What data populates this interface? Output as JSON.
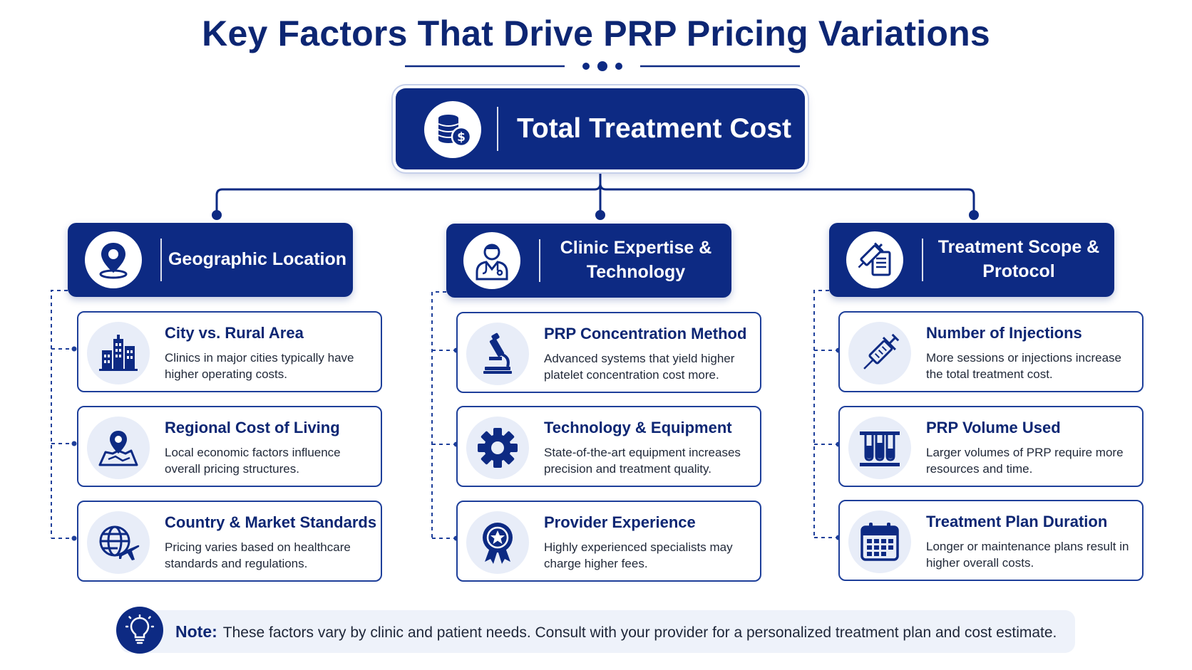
{
  "title": "Key Factors That Drive PRP Pricing Variations",
  "colors": {
    "navy": "#0d2a83",
    "accent_light": "#e8edf8",
    "text": "#222a3a"
  },
  "root": {
    "label": "Total Treatment Cost",
    "icon": "coins-dollar-icon"
  },
  "categories": [
    {
      "label": "Geographic Location",
      "icon": "location-pin-icon",
      "items": [
        {
          "title": "City vs. Rural Area",
          "desc": "Clinics in major cities typically have higher operating costs.",
          "icon": "city-buildings-icon"
        },
        {
          "title": "Regional Cost of Living",
          "desc": "Local economic factors influence overall pricing structures.",
          "icon": "map-pin-icon"
        },
        {
          "title": "Country & Market Standards",
          "desc": "Pricing varies based on healthcare standards and regulations.",
          "icon": "globe-plane-icon"
        }
      ]
    },
    {
      "label": "Clinic Expertise & Technology",
      "icon": "doctor-icon",
      "items": [
        {
          "title": "PRP Concentration Method",
          "desc": "Advanced systems that yield higher platelet concentration cost more.",
          "icon": "microscope-icon"
        },
        {
          "title": "Technology & Equipment",
          "desc": "State-of-the-art equipment increases precision and treatment quality.",
          "icon": "gear-icon"
        },
        {
          "title": "Provider Experience",
          "desc": "Highly experienced specialists may charge higher fees.",
          "icon": "award-ribbon-icon"
        }
      ]
    },
    {
      "label": "Treatment Scope & Protocol",
      "icon": "syringe-document-icon",
      "items": [
        {
          "title": "Number of Injections",
          "desc": "More sessions or injections increase the total treatment cost.",
          "icon": "syringe-icon"
        },
        {
          "title": "PRP Volume Used",
          "desc": "Larger volumes of PRP require more resources and time.",
          "icon": "test-tubes-icon"
        },
        {
          "title": "Treatment Plan Duration",
          "desc": "Longer or maintenance plans result in higher overall costs.",
          "icon": "calendar-icon"
        }
      ]
    }
  ],
  "note": {
    "label": "Note:",
    "text": "These factors vary by clinic and patient needs. Consult with your provider for a personalized treatment plan and cost estimate.",
    "icon": "lightbulb-icon"
  }
}
